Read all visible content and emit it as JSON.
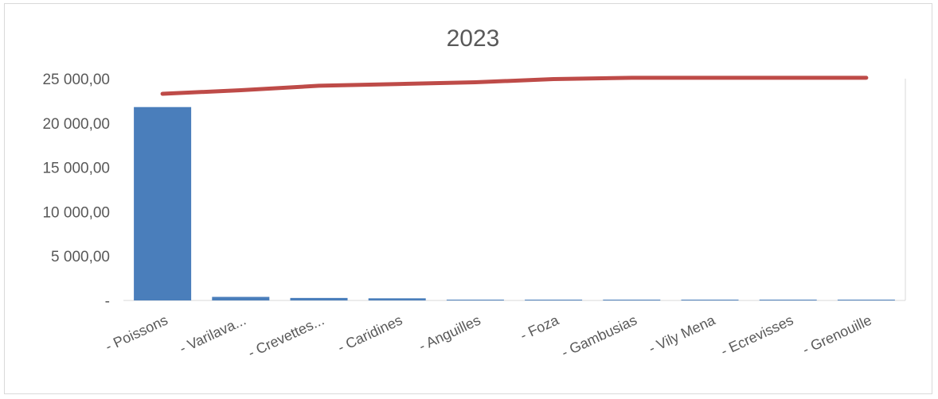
{
  "chart_data": {
    "type": "bar",
    "title": "2023",
    "categories": [
      "- Poissons",
      "- Varilava...",
      "- Crevettes...",
      "- Caridines",
      "- Anguilles",
      "- Foza",
      "- Gambusias",
      "- Vily Mena",
      "- Ecrevisses",
      "- Grenouille"
    ],
    "series": [
      {
        "type": "bar",
        "values": [
          21800,
          400,
          280,
          240,
          30,
          20,
          10,
          8,
          5,
          3
        ],
        "color": "#4a7ebb"
      },
      {
        "type": "line",
        "values": [
          23300,
          23700,
          24200,
          24400,
          24600,
          24950,
          25100,
          25100,
          25100,
          25100
        ],
        "color": "#be4b48"
      }
    ],
    "ylim": [
      0,
      25000
    ],
    "yticks": [
      0,
      5000,
      10000,
      15000,
      20000,
      25000
    ],
    "ytick_labels": [
      "-",
      "5 000,00",
      "10 000,00",
      "15 000,00",
      "20 000,00",
      "25 000,00"
    ],
    "grid": false,
    "legend": "none",
    "xlabel": "",
    "ylabel": ""
  }
}
